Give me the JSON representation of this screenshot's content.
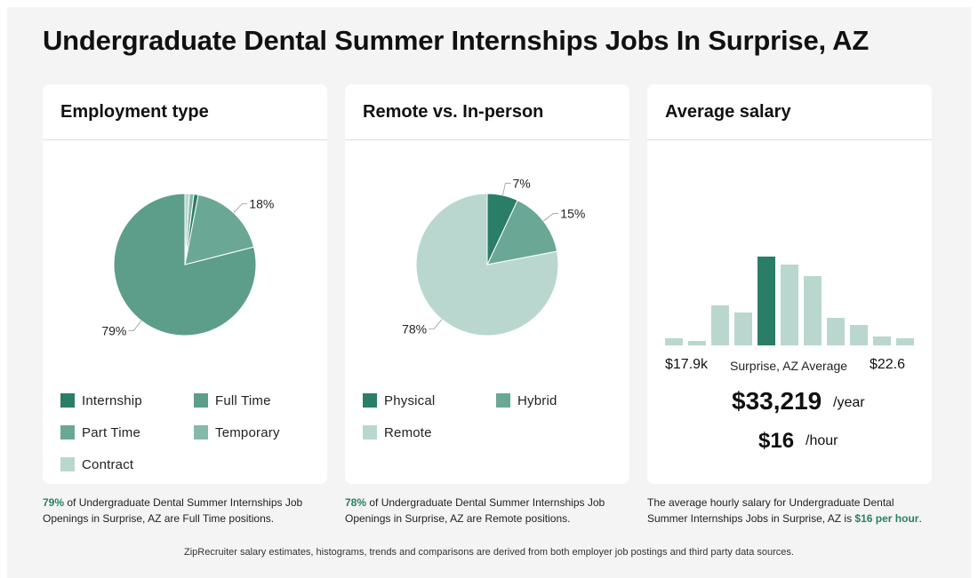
{
  "page": {
    "title": "Undergraduate Dental Summer Internships Jobs In Surprise, AZ",
    "footer": "ZipRecruiter salary estimates, histograms, trends and comparisons are derived from both employer job postings and third party data sources."
  },
  "colors": {
    "dark_green": "#2a7d66",
    "mid_green": "#5c9e8a",
    "light_green": "#7cb3a3",
    "pale_green": "#b9d7ce",
    "accent_text": "#2b8066"
  },
  "employment": {
    "title": "Employment type",
    "legend": [
      {
        "label": "Internship",
        "color": "#2a7d66"
      },
      {
        "label": "Full Time",
        "color": "#5c9e8a"
      },
      {
        "label": "Part Time",
        "color": "#6aa895"
      },
      {
        "label": "Temporary",
        "color": "#85b9a9"
      },
      {
        "label": "Contract",
        "color": "#b9d7ce"
      }
    ],
    "note_pct": "79%",
    "note_text": " of Undergraduate Dental Summer Internships Job Openings in Surprise, AZ are Full Time positions."
  },
  "remote": {
    "title": "Remote vs. In-person",
    "legend": [
      {
        "label": "Physical",
        "color": "#2a7d66"
      },
      {
        "label": "Hybrid",
        "color": "#6aa895"
      },
      {
        "label": "Remote",
        "color": "#b9d7ce"
      }
    ],
    "note_pct": "78%",
    "note_text": " of Undergraduate Dental Summer Internships Job Openings in Surprise, AZ are Remote positions."
  },
  "salary": {
    "title": "Average salary",
    "min_label": "$17.9k",
    "max_label": "$22.6",
    "mid_label": "Surprise, AZ Average",
    "yearly": "$33,219",
    "yearly_unit": "/year",
    "hourly": "$16",
    "hourly_unit": "/hour",
    "note_prefix": "The average hourly salary for Undergraduate Dental Summer Internships Jobs in Surprise, AZ is ",
    "note_value": "$16 per hour",
    "note_suffix": "."
  },
  "chart_data": [
    {
      "type": "pie",
      "title": "Employment type",
      "categories": [
        "Full Time",
        "Part Time",
        "Internship",
        "Temporary",
        "Contract"
      ],
      "values": [
        79,
        18,
        1,
        1,
        1
      ],
      "colors": [
        "#5c9e8a",
        "#6aa895",
        "#2a7d66",
        "#85b9a9",
        "#b9d7ce"
      ],
      "labels": [
        "79%",
        "18%",
        "",
        "",
        ""
      ]
    },
    {
      "type": "pie",
      "title": "Remote vs. In-person",
      "categories": [
        "Remote",
        "Hybrid",
        "Physical"
      ],
      "values": [
        78,
        15,
        7
      ],
      "colors": [
        "#b9d7ce",
        "#6aa895",
        "#2a7d66"
      ],
      "labels": [
        "78%",
        "15%",
        "7%"
      ]
    },
    {
      "type": "bar",
      "title": "Average salary",
      "xlabel": "",
      "ylabel": "",
      "categories": [
        "1",
        "2",
        "3",
        "4",
        "5",
        "6",
        "7",
        "8",
        "9",
        "10",
        "11"
      ],
      "values": [
        8,
        5,
        45,
        37,
        100,
        91,
        78,
        31,
        23,
        10,
        8
      ],
      "highlight_index": 4,
      "colors": {
        "normal": "#b9d7ce",
        "highlight": "#2a7d66"
      }
    }
  ]
}
